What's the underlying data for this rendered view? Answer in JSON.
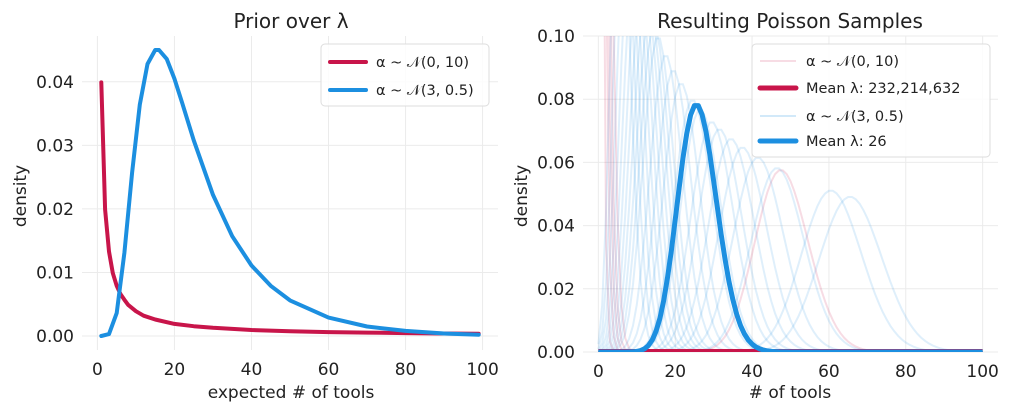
{
  "chart_data": [
    {
      "type": "line",
      "title": "Prior over λ",
      "xlabel": "expected # of tools",
      "ylabel": "density",
      "xlim": [
        -4,
        104
      ],
      "ylim": [
        -0.0022,
        0.0472
      ],
      "xticks": [
        0,
        20,
        40,
        60,
        80,
        100
      ],
      "yticks": [
        0.0,
        0.01,
        0.02,
        0.03,
        0.04
      ],
      "xtick_labels": [
        "0",
        "20",
        "40",
        "60",
        "80",
        "100"
      ],
      "ytick_labels": [
        "0.00",
        "0.01",
        "0.02",
        "0.03",
        "0.04"
      ],
      "grid": true,
      "legend_position": "top-right",
      "series": [
        {
          "name": "α ~ 𝒩(0, 10)",
          "color": "#c8154a",
          "x": [
            1,
            2,
            3,
            4,
            5,
            6,
            7,
            8,
            10,
            12,
            15,
            20,
            25,
            30,
            40,
            50,
            60,
            70,
            80,
            90,
            99
          ],
          "y": [
            0.0399,
            0.0199,
            0.0133,
            0.0099,
            0.0079,
            0.0066,
            0.0057,
            0.0049,
            0.0039,
            0.0032,
            0.0026,
            0.0019,
            0.00155,
            0.0013,
            0.00095,
            0.00075,
            0.00062,
            0.00053,
            0.00046,
            0.0004,
            0.00037
          ]
        },
        {
          "name": "α ~ 𝒩(3, 0.5)",
          "color": "#1c8fe0",
          "x": [
            1,
            3,
            5,
            7,
            9,
            11,
            13,
            15,
            16,
            18,
            20,
            22,
            25,
            30,
            35,
            40,
            45,
            50,
            60,
            70,
            80,
            90,
            99
          ],
          "y": [
            0.0,
            0.0003,
            0.0036,
            0.0131,
            0.0257,
            0.0364,
            0.0428,
            0.045,
            0.045,
            0.0436,
            0.0405,
            0.0367,
            0.0308,
            0.0222,
            0.0157,
            0.0111,
            0.0079,
            0.0056,
            0.0029,
            0.0015,
            0.0008,
            0.0004,
            0.0002
          ]
        }
      ]
    },
    {
      "type": "line",
      "title": "Resulting Poisson Samples",
      "xlabel": "# of tools",
      "ylabel": "density",
      "xlim": [
        -4,
        104
      ],
      "ylim": [
        0.0,
        0.1
      ],
      "xticks": [
        0,
        20,
        40,
        60,
        80,
        100
      ],
      "yticks": [
        0.0,
        0.02,
        0.04,
        0.06,
        0.08,
        0.1
      ],
      "xtick_labels": [
        "0",
        "20",
        "40",
        "60",
        "80",
        "100"
      ],
      "ytick_labels": [
        "0.00",
        "0.02",
        "0.04",
        "0.06",
        "0.08",
        "0.10"
      ],
      "grid": true,
      "legend_position": "top-right",
      "series": [
        {
          "name": "α ~ 𝒩(0, 10)",
          "color": "#c8154a",
          "alpha": 0.15,
          "kind": "samples",
          "lambdas": [
            1.5,
            0.7,
            2.1,
            48,
            0.3,
            1.1
          ]
        },
        {
          "name": "Mean λ: 232,214,632",
          "color": "#c8154a",
          "kind": "mean",
          "x": [
            0,
            100
          ],
          "y": [
            0.0,
            0.0
          ]
        },
        {
          "name": "α ~ 𝒩(3, 0.5)",
          "color": "#1c8fe0",
          "alpha": 0.14,
          "kind": "samples",
          "lambdas": [
            6,
            7,
            8,
            9,
            10,
            11,
            12,
            13,
            14,
            15,
            16,
            18,
            20,
            22,
            25,
            27,
            30,
            32,
            35,
            38,
            42,
            47,
            61,
            66
          ]
        },
        {
          "name": "Mean λ: 26",
          "color": "#1c8fe0",
          "kind": "mean",
          "lambda": 26
        }
      ]
    }
  ]
}
